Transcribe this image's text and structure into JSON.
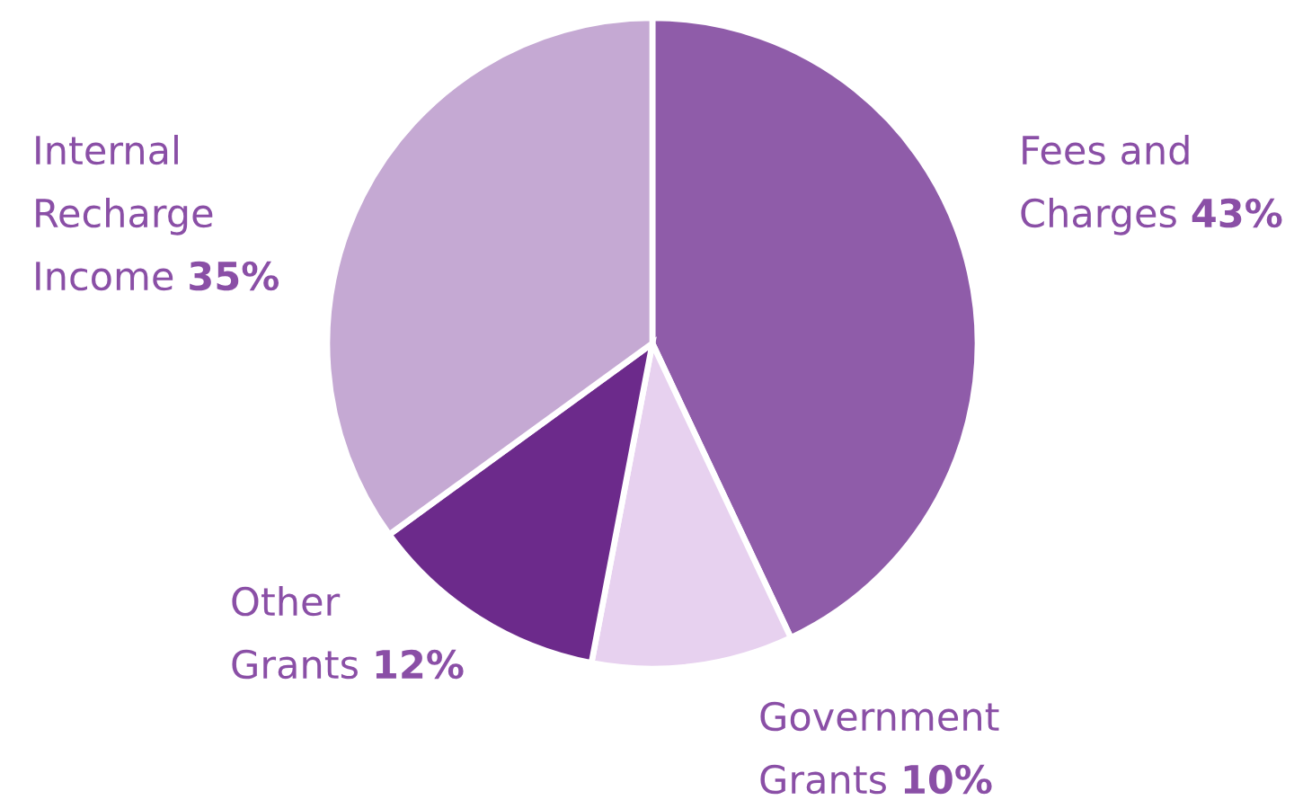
{
  "chart_data": {
    "type": "pie",
    "categories": [
      "Fees and\nCharges",
      "Government\nGrants",
      "Other\nGrants",
      "Internal\nRecharge\nIncome"
    ],
    "values": [
      43,
      10,
      12,
      35
    ],
    "value_labels": [
      "43%",
      "10%",
      "12%",
      "35%"
    ],
    "colors": [
      "#8f5ca9",
      "#e7d1ef",
      "#6c2a8b",
      "#c5a9d3"
    ]
  }
}
